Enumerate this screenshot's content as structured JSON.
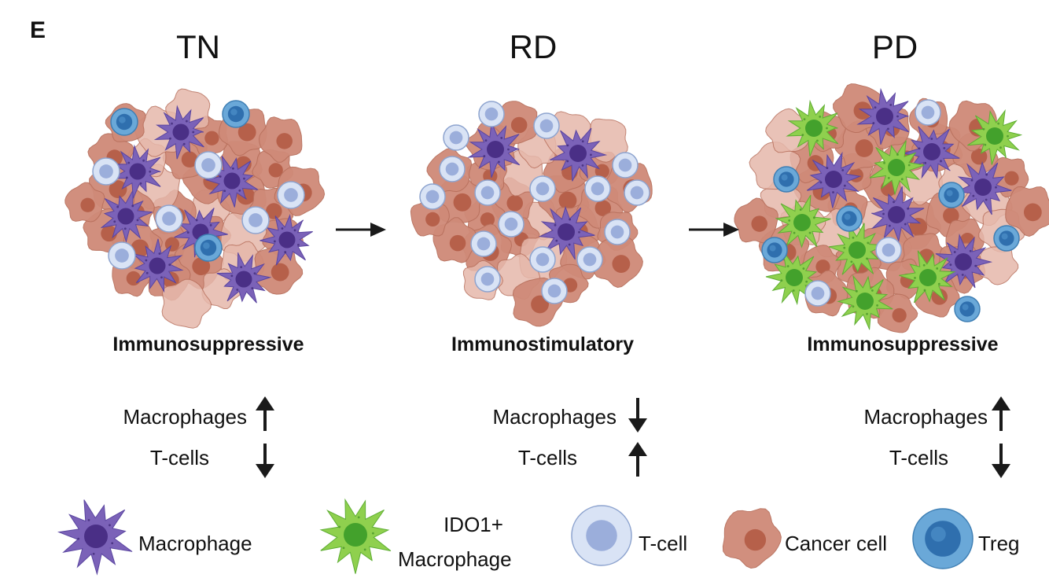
{
  "panel_label": "E",
  "stages": [
    {
      "title": "TN",
      "state": "Immunosuppressive",
      "macrophages_label": "Macrophages",
      "tcells_label": "T-cells",
      "macrophages_trend": "up",
      "tcells_trend": "down"
    },
    {
      "title": "RD",
      "state": "Immunostimulatory",
      "macrophages_label": "Macrophages",
      "tcells_label": "T-cells",
      "macrophages_trend": "down",
      "tcells_trend": "up"
    },
    {
      "title": "PD",
      "state": "Immunosuppressive",
      "macrophages_label": "Macrophages",
      "tcells_label": "T-cells",
      "macrophages_trend": "up",
      "tcells_trend": "down"
    }
  ],
  "legend": [
    {
      "key": "macrophage",
      "label": "Macrophage"
    },
    {
      "key": "ido1-macrophage",
      "label_line1": "IDO1+",
      "label_line2": "Macrophage"
    },
    {
      "key": "t-cell",
      "label": "T-cell"
    },
    {
      "key": "cancer-cell",
      "label": "Cancer cell"
    },
    {
      "key": "treg",
      "label": "Treg"
    }
  ],
  "colors": {
    "cancer": "#cf8a78",
    "cancer_light": "#e6b8ab",
    "cancer_nucleus": "#b35b45",
    "macrophage": "#7b62b8",
    "macrophage_nucleus": "#4a2f86",
    "ido1_macrophage": "#8fd04e",
    "ido1_nucleus": "#43a12c",
    "tcell": "#d9e3f5",
    "tcell_nucleus": "#8fa4d6",
    "treg": "#6aa8d8",
    "treg_nucleus": "#2f6fae",
    "arrow": "#1a1a1a"
  }
}
